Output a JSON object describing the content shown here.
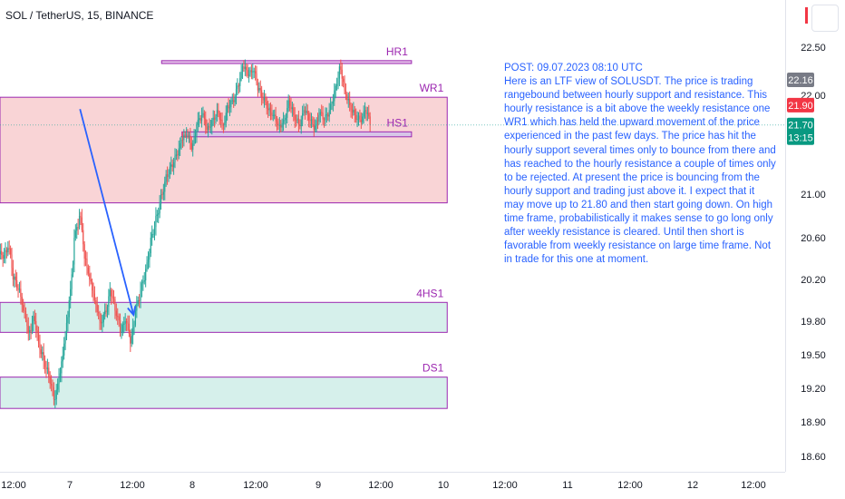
{
  "header": {
    "symbol_title": "SOL / TetherUS, 15, BINANCE"
  },
  "post": {
    "text": "POST: 09.07.2023 08:10 UTC\nHere is an LTF view of SOLUSDT. The price is trading rangebound between hourly support and resistance. This hourly resistance is a bit above the weekly resistance one WR1 which has held the upward movement of the price experienced in the past few days. The price has hit the hourly support several times only to bounce from there and has reached to the hourly resistance a couple of times only to be rejected. At present the price is bouncing from the hourly support and trading just above it. I expect that it may move up to 21.80 and then start going down. On high time frame, probabilistically it makes sense to go long only after weekly resistance is cleared. Until then short is favorable from weekly resistance on large time frame. Not in trade for this one at moment."
  },
  "colors": {
    "up": "#26a69a",
    "down": "#ef5350",
    "zone_red": "#f7c5c8",
    "zone_green": "#c8ebe4",
    "zone_border": "#9c27b0",
    "line_border": "#9c27b0",
    "label": "#9c27b0",
    "arrow": "#2962ff",
    "axis_text": "#131722",
    "badge_gray": "#787b86",
    "badge_red": "#f23645",
    "badge_green": "#089981"
  },
  "chart_data": {
    "type": "candlestick",
    "symbol": "SOL / TetherUS",
    "interval": "15",
    "exchange": "BINANCE",
    "y_ticks": [
      "22.50",
      "22.00",
      "21.00",
      "20.60",
      "20.20",
      "19.80",
      "19.50",
      "19.20",
      "18.90",
      "18.60"
    ],
    "x_ticks": [
      "12:00",
      "7",
      "12:00",
      "8",
      "12:00",
      "9",
      "12:00",
      "10",
      "12:00",
      "11",
      "12:00",
      "12",
      "12:00"
    ],
    "price_badges": [
      {
        "label": "22.16",
        "value": 22.16,
        "color": "gray"
      },
      {
        "label": "21.90",
        "value": 21.9,
        "color": "red"
      },
      {
        "label": "21.70",
        "value": 21.7,
        "color": "green",
        "countdown": "13:15"
      }
    ],
    "zones": [
      {
        "label": "HR1",
        "kind": "line",
        "top": 22.36,
        "bottom": 22.33,
        "start": "2023-07-07 18:00",
        "end": "2023-07-09 19:00"
      },
      {
        "label": "WR1",
        "kind": "resistance",
        "top": 21.98,
        "bottom": 20.92,
        "start": "2023-07-06 10:00",
        "end": "2023-07-10 02:00"
      },
      {
        "label": "HS1",
        "kind": "line",
        "top": 21.63,
        "bottom": 21.58,
        "start": "2023-07-07 22:00",
        "end": "2023-07-09 19:00"
      },
      {
        "label": "4HS1",
        "kind": "support",
        "top": 19.98,
        "bottom": 19.7,
        "start": "2023-07-06 10:00",
        "end": "2023-07-10 02:00"
      },
      {
        "label": "DS1",
        "kind": "support",
        "top": 19.3,
        "bottom": 19.02,
        "start": "2023-07-06 10:00",
        "end": "2023-07-10 02:00"
      }
    ],
    "arrow": {
      "from": [
        "2023-07-07 02:00",
        21.86
      ],
      "to": [
        "2023-07-07 12:30",
        19.86
      ]
    },
    "candles_hourly_close": [
      [
        "2023-07-06 11:00",
        20.4
      ],
      [
        "2023-07-06 12:00",
        20.5
      ],
      [
        "2023-07-06 13:00",
        20.2
      ],
      [
        "2023-07-06 14:00",
        20.1
      ],
      [
        "2023-07-06 15:00",
        19.9
      ],
      [
        "2023-07-06 16:00",
        19.7
      ],
      [
        "2023-07-06 17:00",
        19.85
      ],
      [
        "2023-07-06 18:00",
        19.6
      ],
      [
        "2023-07-06 19:00",
        19.45
      ],
      [
        "2023-07-06 20:00",
        19.3
      ],
      [
        "2023-07-06 21:00",
        19.1
      ],
      [
        "2023-07-06 22:00",
        19.3
      ],
      [
        "2023-07-06 23:00",
        19.6
      ],
      [
        "2023-07-07 00:00",
        20.0
      ],
      [
        "2023-07-07 01:00",
        20.6
      ],
      [
        "2023-07-07 02:00",
        20.8
      ],
      [
        "2023-07-07 03:00",
        20.4
      ],
      [
        "2023-07-07 04:00",
        20.2
      ],
      [
        "2023-07-07 05:00",
        20.0
      ],
      [
        "2023-07-07 06:00",
        19.8
      ],
      [
        "2023-07-07 07:00",
        19.9
      ],
      [
        "2023-07-07 08:00",
        20.1
      ],
      [
        "2023-07-07 09:00",
        19.9
      ],
      [
        "2023-07-07 10:00",
        19.7
      ],
      [
        "2023-07-07 11:00",
        19.8
      ],
      [
        "2023-07-07 12:00",
        19.6
      ],
      [
        "2023-07-07 13:00",
        19.9
      ],
      [
        "2023-07-07 14:00",
        20.1
      ],
      [
        "2023-07-07 15:00",
        20.3
      ],
      [
        "2023-07-07 16:00",
        20.6
      ],
      [
        "2023-07-07 17:00",
        20.8
      ],
      [
        "2023-07-07 18:00",
        21.0
      ],
      [
        "2023-07-07 19:00",
        21.2
      ],
      [
        "2023-07-07 20:00",
        21.3
      ],
      [
        "2023-07-07 21:00",
        21.4
      ],
      [
        "2023-07-07 22:00",
        21.55
      ],
      [
        "2023-07-07 23:00",
        21.6
      ],
      [
        "2023-07-08 00:00",
        21.45
      ],
      [
        "2023-07-08 01:00",
        21.7
      ],
      [
        "2023-07-08 02:00",
        21.8
      ],
      [
        "2023-07-08 03:00",
        21.65
      ],
      [
        "2023-07-08 04:00",
        21.75
      ],
      [
        "2023-07-08 05:00",
        21.85
      ],
      [
        "2023-07-08 06:00",
        21.7
      ],
      [
        "2023-07-08 07:00",
        21.9
      ],
      [
        "2023-07-08 08:00",
        21.95
      ],
      [
        "2023-07-08 09:00",
        22.1
      ],
      [
        "2023-07-08 10:00",
        22.3
      ],
      [
        "2023-07-08 11:00",
        22.2
      ],
      [
        "2023-07-08 12:00",
        22.25
      ],
      [
        "2023-07-08 13:00",
        22.05
      ],
      [
        "2023-07-08 14:00",
        21.95
      ],
      [
        "2023-07-08 15:00",
        21.85
      ],
      [
        "2023-07-08 16:00",
        21.8
      ],
      [
        "2023-07-08 17:00",
        21.7
      ],
      [
        "2023-07-08 18:00",
        21.75
      ],
      [
        "2023-07-08 19:00",
        21.95
      ],
      [
        "2023-07-08 20:00",
        21.8
      ],
      [
        "2023-07-08 21:00",
        21.7
      ],
      [
        "2023-07-08 22:00",
        21.85
      ],
      [
        "2023-07-08 23:00",
        21.75
      ],
      [
        "2023-07-09 00:00",
        21.65
      ],
      [
        "2023-07-09 01:00",
        21.8
      ],
      [
        "2023-07-09 02:00",
        21.75
      ],
      [
        "2023-07-09 03:00",
        21.85
      ],
      [
        "2023-07-09 04:00",
        22.05
      ],
      [
        "2023-07-09 05:00",
        22.3
      ],
      [
        "2023-07-09 06:00",
        22.05
      ],
      [
        "2023-07-09 07:00",
        21.9
      ],
      [
        "2023-07-09 08:00",
        21.8
      ],
      [
        "2023-07-09 09:00",
        21.75
      ],
      [
        "2023-07-09 10:00",
        21.85
      ],
      [
        "2023-07-09 11:00",
        21.7
      ]
    ]
  }
}
